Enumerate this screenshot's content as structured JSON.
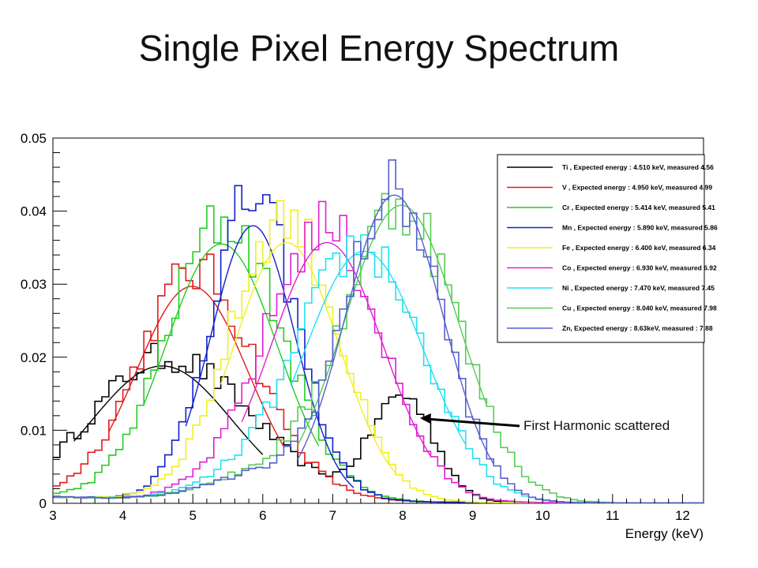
{
  "slide": {
    "title": "Single Pixel Energy Spectrum"
  },
  "chart_data": {
    "type": "line",
    "xlabel": "Energy (keV)",
    "ylabel": "",
    "xlim": [
      3,
      12.3
    ],
    "ylim": [
      0,
      0.05
    ],
    "x_ticks": [
      3,
      4,
      5,
      6,
      7,
      8,
      9,
      10,
      11,
      12
    ],
    "x_tick_labels": [
      "3",
      "4",
      "5",
      "6",
      "7",
      "8",
      "9",
      "10",
      "11",
      "12"
    ],
    "y_ticks": [
      0,
      0.01,
      0.02,
      0.03,
      0.04,
      0.05
    ],
    "y_tick_labels": [
      "0",
      "0.01",
      "0.02",
      "0.03",
      "0.04",
      "0.05"
    ],
    "grid": false,
    "legend_position": "top-right",
    "annotation": {
      "text": "First Harmonic scattered",
      "points_to": {
        "x": 8.3,
        "y": 0.011
      }
    },
    "series": [
      {
        "name": "Ti , Expected energy : 4.510 keV, measured 4.56",
        "color": "#000000",
        "peak_x": 4.56,
        "peak_y": 0.0188,
        "sigma": 1.0,
        "fit_range": [
          3.3,
          6.0
        ],
        "second_peak_x": 8.0,
        "second_peak_y": 0.0145
      },
      {
        "name": "V , Expected energy : 4.950 keV, measured 4.99",
        "color": "#e31a1c",
        "peak_x": 4.99,
        "peak_y": 0.0297,
        "sigma": 0.8,
        "fit_range": [
          3.8,
          6.3
        ]
      },
      {
        "name": "Cr , Expected energy : 5.414 keV, measured 5.41",
        "color": "#22cc22",
        "peak_x": 5.41,
        "peak_y": 0.0355,
        "sigma": 0.8,
        "fit_range": [
          4.3,
          6.8
        ]
      },
      {
        "name": "Mn , Expected energy : 5.890 keV, measured 5.86",
        "color": "#1020c8",
        "peak_x": 5.86,
        "peak_y": 0.038,
        "sigma": 0.6,
        "fit_range": [
          4.9,
          7.3
        ]
      },
      {
        "name": "Fe , Expected energy : 6.400 keV, measured 6.34",
        "color": "#f0f020",
        "peak_x": 6.34,
        "peak_y": 0.0357,
        "sigma": 0.75,
        "fit_range": [
          5.4,
          7.9
        ]
      },
      {
        "name": "Co , Expected energy : 6.930 keV, measured 6.92",
        "color": "#e020d0",
        "peak_x": 6.92,
        "peak_y": 0.0357,
        "sigma": 0.8,
        "fit_range": [
          5.7,
          8.4
        ]
      },
      {
        "name": "Ni , Expected energy : 7.470 keV, measured 7.45",
        "color": "#20e0f0",
        "peak_x": 7.45,
        "peak_y": 0.0345,
        "sigma": 0.85,
        "fit_range": [
          6.4,
          8.9
        ]
      },
      {
        "name": "Cu , Expected energy : 8.040 keV, measured 7.98",
        "color": "#55cc55",
        "peak_x": 7.98,
        "peak_y": 0.0408,
        "sigma": 0.82,
        "fit_range": [
          6.5,
          9.2
        ]
      },
      {
        "name": "Zn, Expected energy : 8.63keV, measured : 7.88",
        "color": "#5560cc",
        "peak_x": 7.88,
        "peak_y": 0.0422,
        "sigma": 0.7,
        "fit_range": [
          6.5,
          9.3
        ]
      }
    ]
  }
}
